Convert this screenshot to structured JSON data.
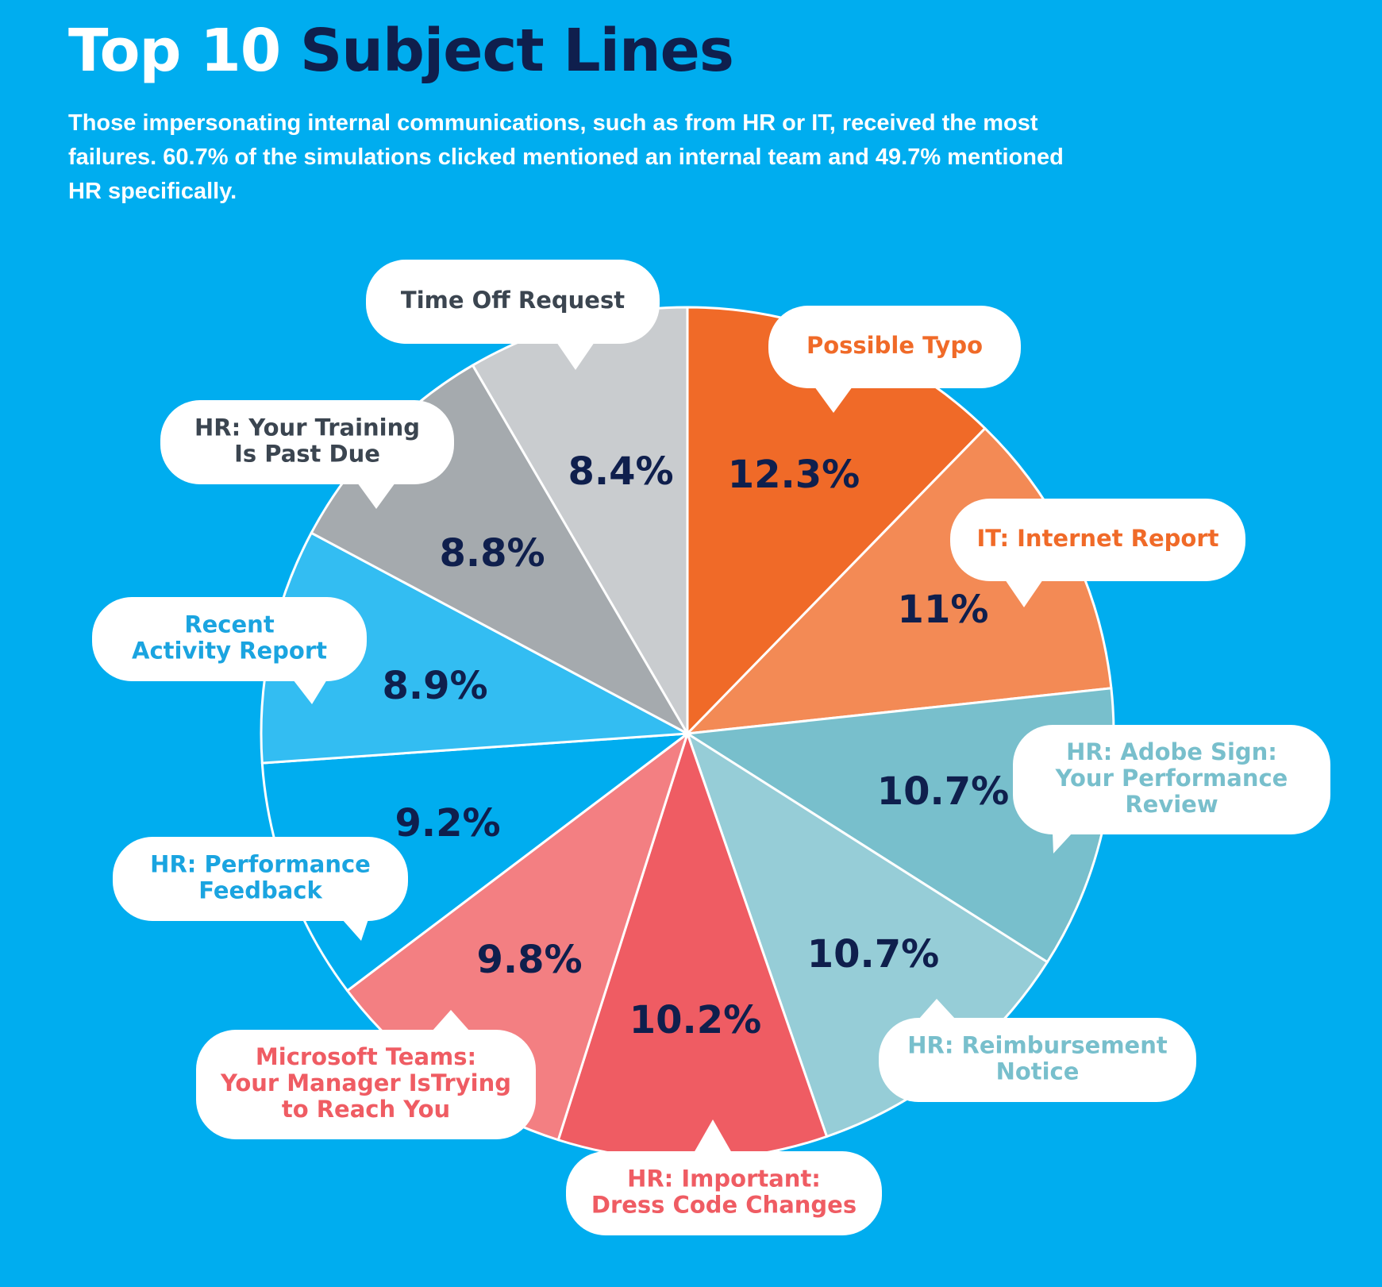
{
  "header": {
    "title_part1": "Top 10",
    "title_part2": "Subject Lines",
    "subtitle": "Those impersonating internal communications, such as from HR or IT, received the most failures. 60.7% of the simulations clicked mentioned an internal team and 49.7% mentioned HR specifically."
  },
  "colors": {
    "background": "#00ADEF",
    "dark_text": "#0F1F4D",
    "bubble": "#FFFFFF"
  },
  "chart_data": {
    "type": "pie",
    "title": "Top 10 Subject Lines",
    "slices": [
      {
        "label": "Possible Typo",
        "value": 12.3,
        "display": "12.3%",
        "color": "#F06A28",
        "label_color": "#F06A28",
        "lines": [
          "Possible Typo"
        ]
      },
      {
        "label": "IT: Internet Report",
        "value": 11,
        "display": "11%",
        "color": "#F38A55",
        "label_color": "#F06A28",
        "lines": [
          "IT: Internet Report"
        ]
      },
      {
        "label": "HR: Adobe Sign: Your Performance Review",
        "value": 10.7,
        "display": "10.7%",
        "color": "#78BFCC",
        "label_color": "#78BFCC",
        "lines": [
          "HR: Adobe Sign:",
          "Your Performance",
          "Review"
        ]
      },
      {
        "label": "HR: Reimbursement Notice",
        "value": 10.7,
        "display": "10.7%",
        "color": "#96CDD7",
        "label_color": "#78BFCC",
        "lines": [
          "HR: Reimbursement",
          "Notice"
        ]
      },
      {
        "label": "HR: Important: Dress Code Changes",
        "value": 10.2,
        "display": "10.2%",
        "color": "#EF5C63",
        "label_color": "#EF5C63",
        "lines": [
          "HR: Important:",
          "Dress Code Changes"
        ]
      },
      {
        "label": "Microsoft Teams: Your Manager IsTrying to Reach You",
        "value": 9.8,
        "display": "9.8%",
        "color": "#F37F82",
        "label_color": "#EF5C63",
        "lines": [
          "Microsoft Teams:",
          "Your Manager IsTrying",
          "to Reach You"
        ]
      },
      {
        "label": "HR: Performance Feedback",
        "value": 9.2,
        "display": "9.2%",
        "color": "#00ADEF",
        "label_color": "#1AA4E0",
        "lines": [
          "HR: Performance",
          "Feedback"
        ]
      },
      {
        "label": "Recent Activity Report",
        "value": 8.9,
        "display": "8.9%",
        "color": "#33BDF2",
        "label_color": "#1AA4E0",
        "lines": [
          "Recent",
          "Activity Report"
        ]
      },
      {
        "label": "HR: Your Training Is Past Due",
        "value": 8.8,
        "display": "8.8%",
        "color": "#A5AAAE",
        "label_color": "#3B4550",
        "lines": [
          "HR: Your Training",
          "Is Past Due"
        ]
      },
      {
        "label": "Time Off Request",
        "value": 8.4,
        "display": "8.4%",
        "color": "#C9CCCF",
        "label_color": "#3B4550",
        "lines": [
          "Time Off Request"
        ]
      }
    ]
  }
}
